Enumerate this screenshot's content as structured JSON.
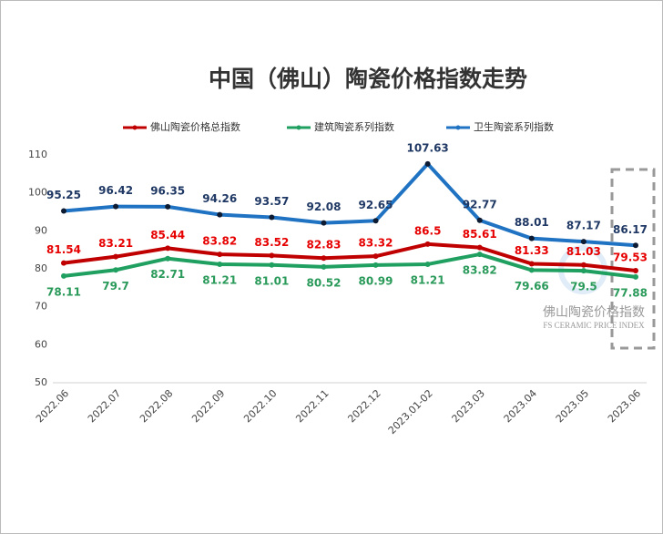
{
  "chart_data": {
    "type": "line",
    "title": "中国（佛山）陶瓷价格指数走势",
    "categories": [
      "2022.06",
      "2022.07",
      "2022.08",
      "2022.09",
      "2022.10",
      "2022.11",
      "2022.12",
      "2023.01-02",
      "2023.03",
      "2023.04",
      "2023.05",
      "2023.06"
    ],
    "series": [
      {
        "name": "佛山陶瓷价格总指数",
        "color": "#c00000",
        "label_color": "#e60000",
        "values": [
          81.54,
          83.21,
          85.44,
          83.82,
          83.52,
          82.83,
          83.32,
          86.5,
          85.61,
          81.33,
          81.03,
          79.53
        ]
      },
      {
        "name": "建筑陶瓷系列指数",
        "color": "#20a060",
        "label_color": "#2a9a5a",
        "values": [
          78.11,
          79.7,
          82.71,
          81.21,
          81.01,
          80.52,
          80.99,
          81.21,
          83.82,
          79.66,
          79.5,
          77.88
        ]
      },
      {
        "name": "卫生陶瓷系列指数",
        "color": "#1f73c2",
        "label_color": "#1f3864",
        "values": [
          95.25,
          96.42,
          96.35,
          94.26,
          93.57,
          92.08,
          92.65,
          107.63,
          92.77,
          88.01,
          87.17,
          86.17
        ]
      }
    ],
    "ylim": [
      50,
      110
    ],
    "yticks": [
      50,
      60,
      70,
      80,
      90,
      100,
      110
    ],
    "grid": false,
    "legend": "top",
    "watermark": {
      "title": "佛山陶瓷价格指数",
      "subtitle": "FS CERAMIC PRICE INDEX"
    }
  }
}
